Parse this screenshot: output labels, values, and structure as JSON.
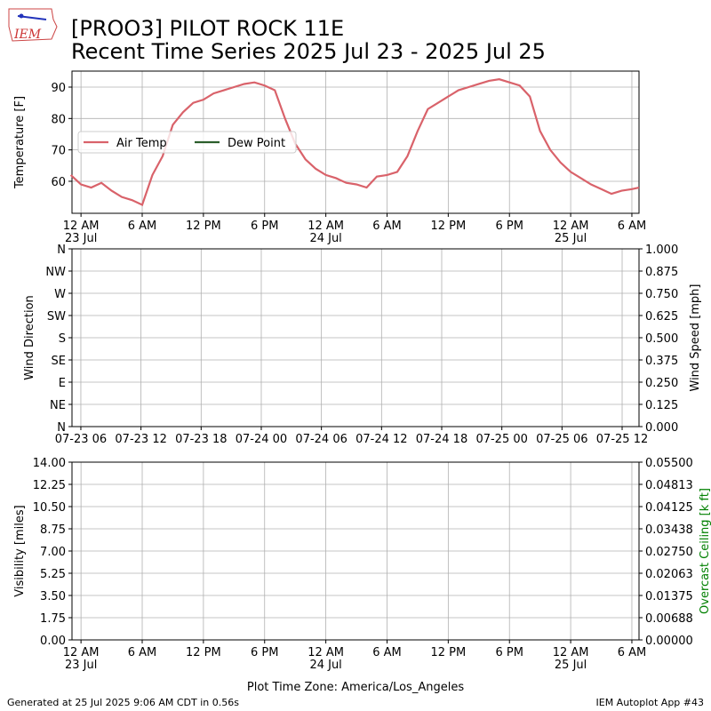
{
  "title": "[PROO3] PILOT ROCK 11E",
  "subtitle": "Recent Time Series 2025 Jul 23 - 2025 Jul 25",
  "logo_text": "IEM",
  "footer_left": "Generated at 25 Jul 2025 9:06 AM CDT in 0.56s",
  "footer_right": "IEM Autoplot App #43",
  "chart_data": [
    {
      "type": "line",
      "ylabel": "Temperature [F]",
      "x": [
        "07-22 23:00",
        "07-23 00:00",
        "07-23 01:00",
        "07-23 02:00",
        "07-23 03:00",
        "07-23 04:00",
        "07-23 05:00",
        "07-23 06:00",
        "07-23 07:00",
        "07-23 08:00",
        "07-23 09:00",
        "07-23 10:00",
        "07-23 11:00",
        "07-23 12:00",
        "07-23 13:00",
        "07-23 14:00",
        "07-23 15:00",
        "07-23 16:00",
        "07-23 17:00",
        "07-23 18:00",
        "07-23 19:00",
        "07-23 20:00",
        "07-23 21:00",
        "07-23 22:00",
        "07-23 23:00",
        "07-24 00:00",
        "07-24 01:00",
        "07-24 02:00",
        "07-24 03:00",
        "07-24 04:00",
        "07-24 05:00",
        "07-24 06:00",
        "07-24 07:00",
        "07-24 08:00",
        "07-24 09:00",
        "07-24 10:00",
        "07-24 11:00",
        "07-24 12:00",
        "07-24 13:00",
        "07-24 14:00",
        "07-24 15:00",
        "07-24 16:00",
        "07-24 17:00",
        "07-24 18:00",
        "07-24 19:00",
        "07-24 20:00",
        "07-24 21:00",
        "07-24 22:00",
        "07-24 23:00",
        "07-25 00:00",
        "07-25 01:00",
        "07-25 02:00",
        "07-25 03:00",
        "07-25 04:00",
        "07-25 05:00",
        "07-25 06:00",
        "07-25 06:42"
      ],
      "series": [
        {
          "name": "Air Temp",
          "color": "#d9626a",
          "values": [
            62,
            59,
            58,
            59.5,
            57,
            55,
            54,
            52.5,
            62,
            68,
            78,
            82,
            85,
            86,
            88,
            89,
            90,
            91,
            91.5,
            90.5,
            89,
            80,
            72,
            67,
            64,
            62,
            61,
            59.5,
            59,
            58,
            61.5,
            62,
            63,
            68,
            76,
            83,
            85,
            87,
            89,
            90,
            91,
            92,
            92.5,
            91.5,
            90.5,
            87,
            76,
            70,
            66,
            63,
            61,
            59,
            57.5,
            56,
            57,
            57.5,
            58
          ]
        },
        {
          "name": "Dew Point",
          "color": "#2b5e2b",
          "values": [
            null,
            null,
            null,
            null,
            null,
            null,
            null,
            null,
            null,
            null,
            null,
            null,
            null,
            null,
            null,
            null,
            null,
            null,
            null,
            null,
            null,
            null,
            null,
            null,
            null,
            null,
            null,
            null,
            null,
            null,
            null,
            null,
            null,
            null,
            null,
            null,
            null,
            null,
            null,
            null,
            null,
            null,
            null,
            null,
            null,
            null,
            null,
            null,
            null,
            null,
            null,
            null,
            null,
            null,
            null,
            null,
            null
          ]
        }
      ],
      "xlim": [
        "07-22 23:07",
        "07-25 06:42"
      ],
      "xticks": [
        {
          "value": "07-23 00:00",
          "label": "12 AM\n23 Jul"
        },
        {
          "value": "07-23 06:00",
          "label": "6 AM"
        },
        {
          "value": "07-23 12:00",
          "label": "12 PM"
        },
        {
          "value": "07-23 18:00",
          "label": "6 PM"
        },
        {
          "value": "07-24 00:00",
          "label": "12 AM\n24 Jul"
        },
        {
          "value": "07-24 06:00",
          "label": "6 AM"
        },
        {
          "value": "07-24 12:00",
          "label": "12 PM"
        },
        {
          "value": "07-24 18:00",
          "label": "6 PM"
        },
        {
          "value": "07-25 00:00",
          "label": "12 AM\n25 Jul"
        },
        {
          "value": "07-25 06:00",
          "label": "6 AM"
        }
      ],
      "ylim": [
        49.8,
        95.1
      ],
      "yticks": [
        60,
        70,
        80,
        90
      ],
      "grid": true,
      "legend": "center left"
    },
    {
      "type": "line",
      "ylabel": "Wind Direction",
      "y2label": "Wind Speed [mph]",
      "series": [],
      "xlim": [
        "07-23 05:07",
        "07-25 13:41"
      ],
      "xticks": [
        {
          "value": "07-23 06:00",
          "label": "07-23 06"
        },
        {
          "value": "07-23 12:00",
          "label": "07-23 12"
        },
        {
          "value": "07-23 18:00",
          "label": "07-23 18"
        },
        {
          "value": "07-24 00:00",
          "label": "07-24 00"
        },
        {
          "value": "07-24 06:00",
          "label": "07-24 06"
        },
        {
          "value": "07-24 12:00",
          "label": "07-24 12"
        },
        {
          "value": "07-24 18:00",
          "label": "07-24 18"
        },
        {
          "value": "07-25 00:00",
          "label": "07-25 00"
        },
        {
          "value": "07-25 06:00",
          "label": "07-25 06"
        },
        {
          "value": "07-25 12:00",
          "label": "07-25 12"
        }
      ],
      "ylim": [
        0,
        360
      ],
      "yticks": [
        {
          "value": 0,
          "label": "N"
        },
        {
          "value": 45,
          "label": "NE"
        },
        {
          "value": 90,
          "label": "E"
        },
        {
          "value": 135,
          "label": "SE"
        },
        {
          "value": 180,
          "label": "S"
        },
        {
          "value": 225,
          "label": "SW"
        },
        {
          "value": 270,
          "label": "W"
        },
        {
          "value": 315,
          "label": "NW"
        },
        {
          "value": 360,
          "label": "N"
        }
      ],
      "y2lim": [
        0,
        1
      ],
      "y2ticks": [
        {
          "value": 0,
          "label": "0.000"
        },
        0.125,
        {
          "value": 0.25,
          "label": "0.250"
        },
        0.375,
        {
          "value": 0.5,
          "label": "0.500"
        },
        0.625,
        {
          "value": 0.75,
          "label": "0.750"
        },
        0.875,
        {
          "value": 1,
          "label": "1.000"
        }
      ],
      "grid": true
    },
    {
      "type": "line",
      "ylabel": "Visibility [miles]",
      "y2label": "Overcast Ceiling [k ft]",
      "y2label_color": "#008000",
      "xlabel": "Plot Time Zone: America/Los_Angeles",
      "series": [],
      "xlim": [
        "07-22 23:07",
        "07-25 06:42"
      ],
      "xticks": [
        {
          "value": "07-23 00:00",
          "label": "12 AM\n23 Jul"
        },
        {
          "value": "07-23 06:00",
          "label": "6 AM"
        },
        {
          "value": "07-23 12:00",
          "label": "12 PM"
        },
        {
          "value": "07-23 18:00",
          "label": "6 PM"
        },
        {
          "value": "07-24 00:00",
          "label": "12 AM\n24 Jul"
        },
        {
          "value": "07-24 06:00",
          "label": "6 AM"
        },
        {
          "value": "07-24 12:00",
          "label": "12 PM"
        },
        {
          "value": "07-24 18:00",
          "label": "6 PM"
        },
        {
          "value": "07-25 00:00",
          "label": "12 AM\n25 Jul"
        },
        {
          "value": "07-25 06:00",
          "label": "6 AM"
        }
      ],
      "ylim": [
        0,
        14
      ],
      "yticks": [
        {
          "value": 0,
          "label": "0.00"
        },
        1.75,
        {
          "value": 3.5,
          "label": "3.50"
        },
        5.25,
        {
          "value": 7,
          "label": "7.00"
        },
        8.75,
        {
          "value": 10.5,
          "label": "10.50"
        },
        12.25,
        {
          "value": 14,
          "label": "14.00"
        }
      ],
      "y2lim": [
        0,
        0.055
      ],
      "y2ticks": [
        {
          "value": 0,
          "label": "0.00000"
        },
        {
          "value": 0.006875,
          "label": "0.00688"
        },
        0.01375,
        {
          "value": 0.020625,
          "label": "0.02063"
        },
        {
          "value": 0.0275,
          "label": "0.02750"
        },
        {
          "value": 0.034375,
          "label": "0.03438"
        },
        0.04125,
        {
          "value": 0.048125,
          "label": "0.04813"
        },
        {
          "value": 0.055,
          "label": "0.05500"
        }
      ],
      "grid": true
    }
  ]
}
